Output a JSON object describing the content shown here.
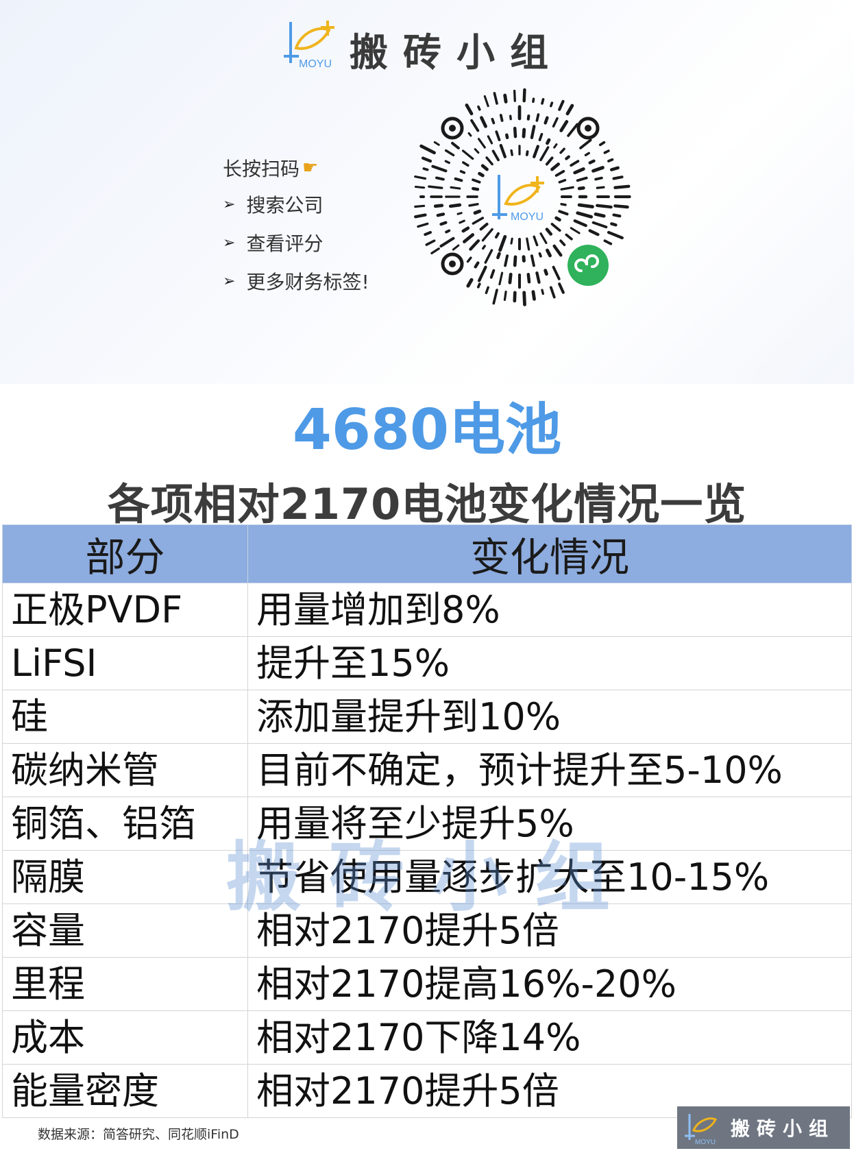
{
  "brand": {
    "name": "搬砖小组",
    "logo_text": "MOYU"
  },
  "promo": {
    "title": "长按扫码",
    "items": [
      "搜索公司",
      "查看评分",
      "更多财务标签!"
    ]
  },
  "qr": {
    "logo_text": "MOYU"
  },
  "title": "4680电池",
  "subtitle": "各项相对2170电池变化情况一览",
  "table": {
    "headers": [
      "部分",
      "变化情况"
    ],
    "rows": [
      [
        "正极PVDF",
        "用量增加到8%"
      ],
      [
        "LiFSI",
        "提升至15%"
      ],
      [
        "硅",
        "添加量提升到10%"
      ],
      [
        "碳纳米管",
        "目前不确定，预计提升至5-10%"
      ],
      [
        "铜箔、铝箔",
        "用量将至少提升5%"
      ],
      [
        "隔膜",
        "节省使用量逐步扩大至10-15%"
      ],
      [
        "容量",
        "相对2170提升5倍"
      ],
      [
        "里程",
        "相对2170提高16%-20%"
      ],
      [
        "成本",
        "相对2170下降14%"
      ],
      [
        "能量密度",
        "相对2170提升5倍"
      ]
    ]
  },
  "watermark": "搬砖小组",
  "footer": {
    "source": "数据来源：简答研究、同花顺iFinD",
    "badge_name": "搬砖小组",
    "badge_logo_text": "MOYU"
  },
  "colors": {
    "accent": "#4e9ae6",
    "header_bg": "#8dacdf",
    "wechat_green": "#2fb25b"
  }
}
